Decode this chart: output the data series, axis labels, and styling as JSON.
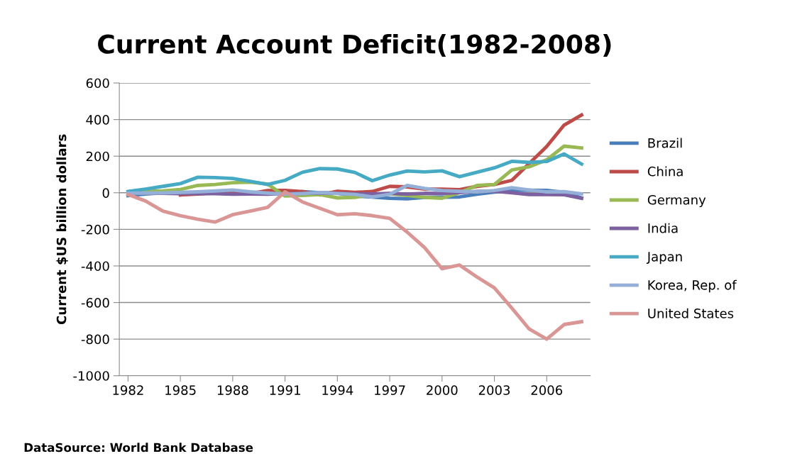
{
  "chart_data": {
    "type": "line",
    "title": "Current Account Deficit(1982-2008)",
    "ylabel": "Current $US billion dollars",
    "x": [
      1982,
      1983,
      1984,
      1985,
      1986,
      1987,
      1988,
      1989,
      1990,
      1991,
      1992,
      1993,
      1994,
      1995,
      1996,
      1997,
      1998,
      1999,
      2000,
      2001,
      2002,
      2003,
      2004,
      2005,
      2006,
      2007,
      2008
    ],
    "series": [
      {
        "name": "Brazil",
        "color": "#4a7ebb",
        "values": [
          -16,
          -7,
          0,
          0,
          -5,
          -1,
          4,
          1,
          -4,
          -1,
          6,
          0,
          -2,
          -18,
          -23,
          -30,
          -33,
          -25,
          -24,
          -23,
          -8,
          4,
          12,
          14,
          13,
          2,
          -28
        ]
      },
      {
        "name": "China",
        "color": "#be4b48",
        "values": [
          null,
          null,
          null,
          -12,
          -7,
          0,
          -4,
          -4,
          12,
          13,
          6,
          -12,
          8,
          2,
          7,
          35,
          32,
          20,
          20,
          17,
          35,
          45,
          68,
          160,
          253,
          370,
          425
        ]
      },
      {
        "name": "Germany",
        "color": "#98b954",
        "values": [
          5,
          8,
          10,
          18,
          40,
          45,
          55,
          58,
          48,
          -18,
          -15,
          -10,
          -28,
          -25,
          -10,
          -5,
          -15,
          -25,
          -30,
          0,
          40,
          45,
          125,
          142,
          180,
          255,
          245
        ]
      },
      {
        "name": "India",
        "color": "#7d60a0",
        "values": [
          -3,
          -3,
          -3,
          -5,
          -5,
          -5,
          -8,
          -7,
          -8,
          -4,
          -4,
          -1,
          -3,
          -5,
          -6,
          -3,
          -7,
          -3,
          -4,
          1,
          7,
          9,
          0,
          -10,
          -10,
          -11,
          -30
        ]
      },
      {
        "name": "Japan",
        "color": "#46aac5",
        "values": [
          7,
          20,
          35,
          50,
          85,
          83,
          78,
          63,
          45,
          68,
          112,
          132,
          130,
          111,
          66,
          97,
          119,
          114,
          120,
          88,
          112,
          136,
          172,
          166,
          171,
          212,
          157
        ]
      },
      {
        "name": "Korea, Rep. of",
        "color": "#94b0d8",
        "values": [
          -3,
          -2,
          -1,
          2,
          5,
          10,
          15,
          5,
          -2,
          -8,
          -4,
          1,
          -4,
          -9,
          -23,
          -8,
          40,
          24,
          12,
          8,
          5,
          12,
          28,
          15,
          5,
          6,
          -6
        ]
      },
      {
        "name": "United States",
        "color": "#d99694",
        "values": [
          -10,
          -45,
          -100,
          -125,
          -145,
          -160,
          -120,
          -100,
          -80,
          5,
          -50,
          -85,
          -120,
          -115,
          -125,
          -140,
          -215,
          -300,
          -415,
          -395,
          -460,
          -520,
          -630,
          -745,
          -800,
          -720,
          -705
        ]
      }
    ],
    "xlim": [
      1981.5,
      2008.5
    ],
    "xticks": [
      1982,
      1985,
      1988,
      1991,
      1994,
      1997,
      2000,
      2003,
      2006
    ],
    "ylim": [
      -1000,
      600
    ],
    "yticks": [
      -1000,
      -800,
      -600,
      -400,
      -200,
      0,
      200,
      400,
      600
    ],
    "grid": "y",
    "legend": "right",
    "marker": "none",
    "line_style": "solid",
    "annotations": [
      "DataSource: World Bank Database"
    ]
  }
}
